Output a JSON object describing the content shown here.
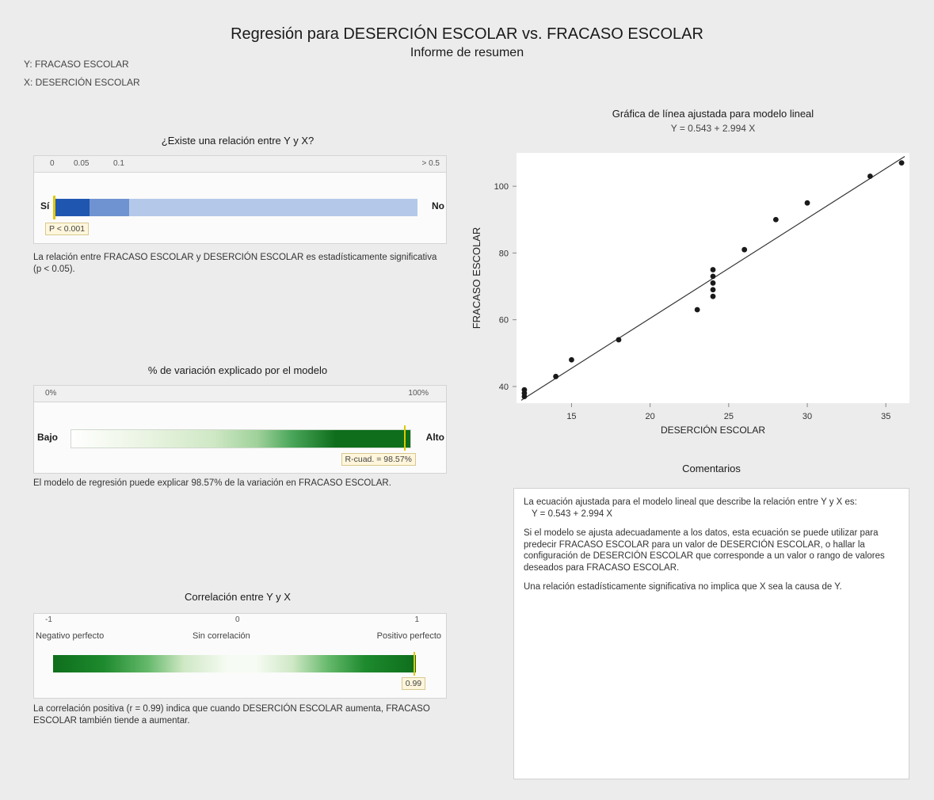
{
  "header": {
    "title": "Regresión para DESERCIÓN ESCOLAR vs. FRACASO ESCOLAR",
    "subtitle": "Informe de resumen",
    "y_var": "Y: FRACASO ESCOLAR",
    "x_var": "X: DESERCIÓN ESCOLAR"
  },
  "relation": {
    "title": "¿Existe una relación entre Y y X?",
    "scale": [
      "0",
      "0.05",
      "0.1",
      "> 0.5"
    ],
    "left_label": "Sí",
    "right_label": "No",
    "pvalue_label": "P < 0.001",
    "description": "La relación entre FRACASO ESCOLAR y DESERCIÓN ESCOLAR es estadísticamente significativa (p < 0.05).",
    "colors": {
      "dark": "#1f56b0",
      "light": "#b4c9ea"
    }
  },
  "variation": {
    "title": "% de variación explicado por el modelo",
    "scale": [
      "0%",
      "100%"
    ],
    "left_label": "Bajo",
    "right_label": "Alto",
    "rsq_label": "R-cuad. = 98.57%",
    "rsq_value": 98.57,
    "description": "El modelo de regresión puede explicar 98.57% de la variación en FRACASO ESCOLAR.",
    "colors": {
      "dark": "#0e6e1c"
    }
  },
  "correlation": {
    "title": "Correlación entre Y y X",
    "scale": [
      "-1",
      "0",
      "1"
    ],
    "labels": [
      "Negativo perfecto",
      "Sin correlación",
      "Positivo perfecto"
    ],
    "r_label": "0.99",
    "r_value": 0.99,
    "description": "La correlación positiva (r = 0.99) indica que cuando DESERCIÓN ESCOLAR aumenta, FRACASO ESCOLAR también tiende a aumentar."
  },
  "chart_data": {
    "type": "scatter",
    "title": "Gráfica de línea ajustada para modelo lineal",
    "subtitle": "Y = 0.543 + 2.994 X",
    "xlabel": "DESERCIÓN ESCOLAR",
    "ylabel": "FRACASO ESCOLAR",
    "xlim": [
      11.5,
      36.5
    ],
    "ylim": [
      35,
      110
    ],
    "xticks": [
      15,
      20,
      25,
      30,
      35
    ],
    "yticks": [
      40,
      60,
      80,
      100
    ],
    "fit": {
      "intercept": 0.543,
      "slope": 2.994
    },
    "points": [
      {
        "x": 12,
        "y": 37
      },
      {
        "x": 12,
        "y": 38
      },
      {
        "x": 12,
        "y": 39
      },
      {
        "x": 14,
        "y": 43
      },
      {
        "x": 15,
        "y": 48
      },
      {
        "x": 18,
        "y": 54
      },
      {
        "x": 23,
        "y": 63
      },
      {
        "x": 24,
        "y": 67
      },
      {
        "x": 24,
        "y": 69
      },
      {
        "x": 24,
        "y": 71
      },
      {
        "x": 24,
        "y": 73
      },
      {
        "x": 24,
        "y": 75
      },
      {
        "x": 26,
        "y": 81
      },
      {
        "x": 28,
        "y": 90
      },
      {
        "x": 30,
        "y": 95
      },
      {
        "x": 34,
        "y": 103
      },
      {
        "x": 36,
        "y": 107
      }
    ],
    "grid": false,
    "legend": "none"
  },
  "comments": {
    "title": "Comentarios",
    "p1": "La ecuación ajustada para el modelo lineal que describe la relación entre Y y X es:",
    "equation": "Y = 0.543 + 2.994 X",
    "p2": "Si el modelo se ajusta adecuadamente a los datos, esta ecuación se puede utilizar para predecir FRACASO ESCOLAR para un valor de DESERCIÓN ESCOLAR, o hallar la configuración de DESERCIÓN ESCOLAR que corresponde a un valor o rango de valores deseados para FRACASO ESCOLAR.",
    "p3": "Una relación estadísticamente significativa no implica que X sea la causa de Y."
  }
}
